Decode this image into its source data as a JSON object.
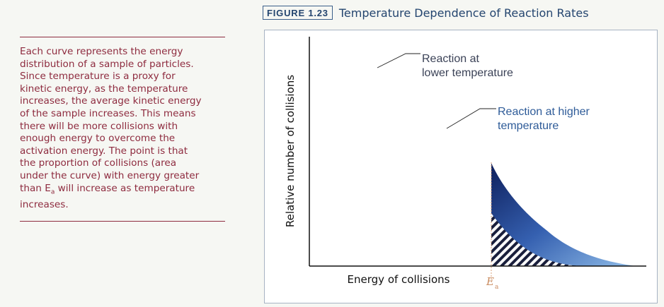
{
  "sidebar": {
    "lines": [
      "Each curve represents the energy",
      "distribution of a sample of particles.",
      "Since temperature is a proxy for",
      "kinetic energy, as the temperature",
      "increases, the average kinetic energy",
      "of the sample increases. This means",
      "there will be more collisions with",
      "enough energy to overcome the",
      "activation energy. The point is that",
      "the proportion of collisions (area",
      "under the curve) with energy greater",
      "than E",
      "a",
      " will increase as temperature",
      "increases."
    ]
  },
  "figure": {
    "tag": "FIGURE 1.23",
    "title": "Temperature Dependence of Reaction Rates"
  },
  "chart_data": {
    "type": "line",
    "xlabel": "Energy of collisions",
    "ylabel": "Relative number of collisions",
    "threshold": {
      "symbol": "E",
      "subscript": "a"
    },
    "annotations": [
      {
        "lines": [
          "Reaction at",
          "lower temperature"
        ],
        "color": "#3b4257"
      },
      {
        "lines": [
          "Reaction at higher",
          "temperature"
        ],
        "color": "#2e5b98"
      }
    ],
    "series": [
      {
        "color": "#1f7a3d"
      },
      {
        "color": "#1f7a3d"
      }
    ],
    "shading": {
      "higher_only": "dark-blue gradient",
      "both_curves": "diagonal hatching"
    }
  }
}
